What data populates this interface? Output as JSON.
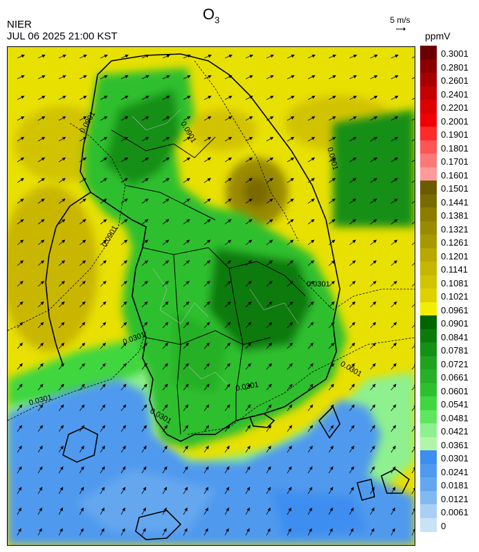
{
  "header": {
    "title_main": "O",
    "title_sub": "3",
    "agency": "NIER",
    "datetime": "JUL 06 2025 21:00 KST",
    "wind_ref": "5 m/s",
    "unit": "ppmV"
  },
  "legend": {
    "labels": [
      "0.3001",
      "0.2801",
      "0.2601",
      "0.2401",
      "0.2201",
      "0.2001",
      "0.1901",
      "0.1801",
      "0.1701",
      "0.1601",
      "0.1501",
      "0.1441",
      "0.1381",
      "0.1321",
      "0.1261",
      "0.1201",
      "0.1141",
      "0.1081",
      "0.1021",
      "0.0961",
      "0.0901",
      "0.0841",
      "0.0781",
      "0.0721",
      "0.0661",
      "0.0601",
      "0.0541",
      "0.0481",
      "0.0421",
      "0.0361",
      "0.0301",
      "0.0241",
      "0.0181",
      "0.0121",
      "0.0061",
      "0"
    ],
    "colors": [
      "#6b0000",
      "#8b0000",
      "#a80000",
      "#c40000",
      "#dd0000",
      "#f00000",
      "#ff2a2a",
      "#ff5555",
      "#ff7878",
      "#ff9a9a",
      "#6b5a00",
      "#7a6b00",
      "#8c7c00",
      "#9a8a00",
      "#a89800",
      "#b8a800",
      "#c6b600",
      "#d2c300",
      "#dfd000",
      "#f2ee00",
      "#006400",
      "#0b7a0b",
      "#158f15",
      "#1fa31f",
      "#26b026",
      "#2ebf2e",
      "#3fd63f",
      "#5fe65f",
      "#8ef08e",
      "#b2f5a8",
      "#3c8ef0",
      "#4f9aee",
      "#65a7ef",
      "#82b9f1",
      "#a9d0f4",
      "#c9e2f7"
    ]
  },
  "contour_labels": [
    "0.0901",
    "0.0901",
    "0.0901",
    "0.0901",
    "0.0301",
    "0.0301",
    "0.0301",
    "0.0301",
    "0.0301",
    "0.0301"
  ]
}
